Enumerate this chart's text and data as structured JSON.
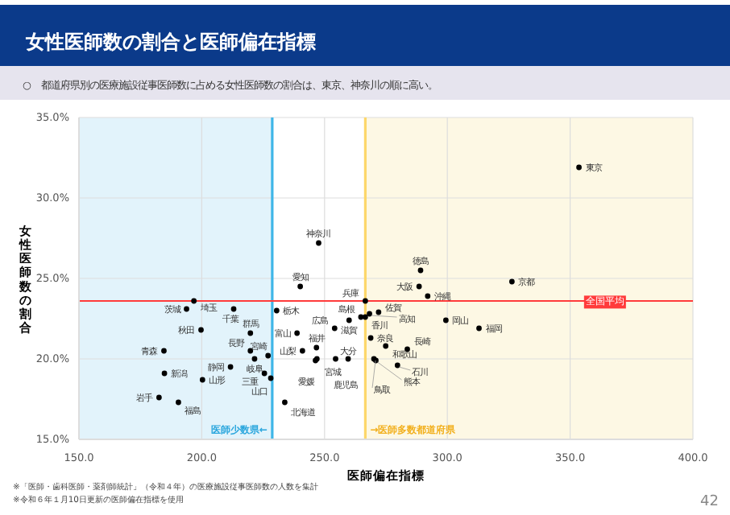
{
  "chart_data": {
    "type": "scatter",
    "title": "女性医師数の割合と医師偏在指標",
    "subtitle": "○　都道府県別の医療施設従事医師数に占める女性医師数の割合は、東京、神奈川の順に高い。",
    "xlabel": "医師偏在指標",
    "ylabel": "女性医師数の割合",
    "x": [
      233.8,
      184.6,
      182.6,
      246.9,
      199.7,
      200.3,
      190.5,
      193.8,
      230.5,
      219.8,
      196.8,
      213.0,
      353.6,
      247.6,
      184.8,
      238.8,
      279.7,
      246.7,
      241.0,
      219.8,
      221.5,
      211.7,
      240.1,
      225.5,
      260.0,
      326.3,
      288.5,
      266.6,
      268.8,
      274.9,
      270.1,
      264.8,
      299.4,
      254.1,
      228.1,
      289.1,
      266.6,
      246.3,
      268.3,
      312.9,
      272.0,
      283.7,
      270.9,
      259.6,
      227.0,
      254.5,
      292.0
    ],
    "values": [
      17.3,
      20.5,
      17.6,
      20.0,
      21.8,
      18.7,
      17.3,
      23.1,
      23.0,
      21.6,
      23.6,
      23.1,
      31.9,
      27.2,
      19.1,
      21.6,
      19.6,
      20.7,
      20.5,
      20.5,
      20.0,
      19.5,
      24.5,
      19.1,
      22.4,
      24.8,
      24.5,
      23.6,
      21.3,
      20.8,
      20.0,
      22.6,
      22.4,
      21.9,
      18.8,
      25.5,
      22.6,
      19.9,
      22.8,
      21.9,
      22.9,
      20.6,
      19.9,
      20.0,
      20.2,
      20.0,
      23.9
    ],
    "value_labels": [
      "北海道",
      "青森",
      "岩手",
      "宮城",
      "秋田",
      "山形",
      "福島",
      "茨城",
      "栃木",
      "群馬",
      "埼玉",
      "千葉",
      "東京",
      "神奈川",
      "新潟",
      "富山",
      "石川",
      "福井",
      "山梨",
      "長野",
      "岐阜",
      "静岡",
      "愛知",
      "三重",
      "滋賀",
      "京都",
      "大阪",
      "兵庫",
      "奈良",
      "和歌山",
      "鳥取",
      "島根",
      "岡山",
      "広島",
      "山口",
      "徳島",
      "香川",
      "愛媛",
      "高知",
      "福岡",
      "佐賀",
      "長崎",
      "熊本",
      "大分",
      "宮崎",
      "鹿児島",
      "沖縄"
    ],
    "color": "#000000",
    "marker": "circle",
    "xlim": [
      150,
      400
    ],
    "xticks": [
      {
        "value": 150,
        "label": "150.0"
      },
      {
        "value": 200,
        "label": "200.0"
      },
      {
        "value": 250,
        "label": "250.0"
      },
      {
        "value": 300,
        "label": "300.0"
      },
      {
        "value": 350,
        "label": "350.0"
      },
      {
        "value": 400,
        "label": "400.0"
      }
    ],
    "ylim": [
      15,
      35
    ],
    "yticks": [
      {
        "value": 15,
        "label": "15.0%"
      },
      {
        "value": 20,
        "label": "20.0%"
      },
      {
        "value": 25,
        "label": "25.0%"
      },
      {
        "value": 30,
        "label": "30.0%"
      },
      {
        "value": 35,
        "label": "35.0%"
      }
    ],
    "grid": true,
    "bands": [
      {
        "axis": "x",
        "from": 150,
        "to": 228.7,
        "label": "医師少数県←",
        "color": "#e2f3fb"
      },
      {
        "axis": "x",
        "from": 266.6,
        "to": 400,
        "label": "→医師多数都道府県",
        "color": "#fdf8e4"
      }
    ],
    "ref_lines": [
      {
        "axis": "x",
        "value": 228.7,
        "color": "#3fb6e8"
      },
      {
        "axis": "x",
        "value": 266.6,
        "color": "#fdd76a"
      },
      {
        "axis": "y",
        "value": 23.6,
        "label": "全国平均",
        "color": "#ff3b3b"
      }
    ],
    "annotations": [
      "※「医師・歯科医師・薬剤師統計」（令和４年）の医療施設従事医師数の人数を集計",
      "※令和６年１月10日更新の医師偏在指標を使用",
      "42"
    ]
  }
}
